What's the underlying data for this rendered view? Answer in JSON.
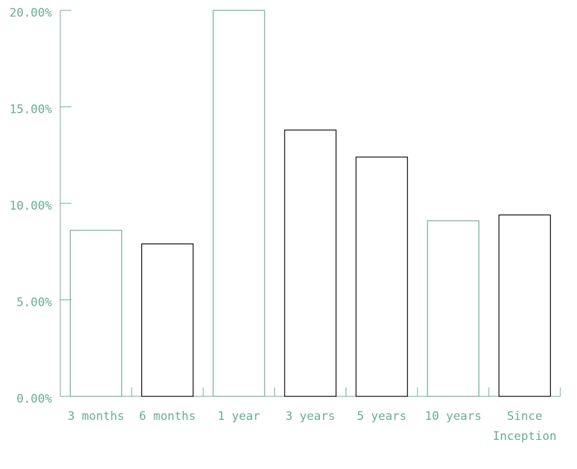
{
  "chart_data": {
    "type": "bar",
    "categories": [
      "3 months",
      "6 months",
      "1 year",
      "3 years",
      "5 years",
      "10 years",
      "Since Inception"
    ],
    "values": [
      8.6,
      7.9,
      20.0,
      13.8,
      12.4,
      9.1,
      9.4
    ],
    "colors": [
      "#6aab95",
      "#000000",
      "#6aab95",
      "#000000",
      "#000000",
      "#6aab95",
      "#000000"
    ],
    "ylim": [
      0,
      20
    ],
    "yticks": [
      {
        "value": 0,
        "label": "0.00%"
      },
      {
        "value": 5,
        "label": "5.00%"
      },
      {
        "value": 10,
        "label": "10.00%"
      },
      {
        "value": 15,
        "label": "15.00%"
      },
      {
        "value": 20,
        "label": "20.00%"
      }
    ],
    "axis_color": "#6aab95",
    "grid": false
  }
}
